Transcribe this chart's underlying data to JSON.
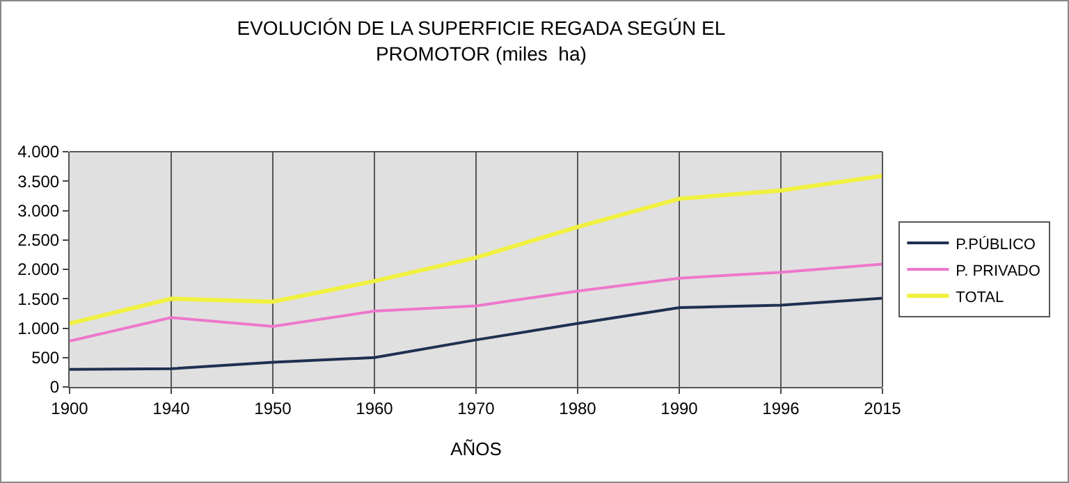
{
  "chart_data": {
    "type": "line",
    "title": "EVOLUCIÓN DE LA SUPERFICIE REGADA SEGÚN EL PROMOTOR (miles  ha)",
    "xlabel": "AÑOS",
    "categories": [
      "1900",
      "1940",
      "1950",
      "1960",
      "1970",
      "1980",
      "1990",
      "1996",
      "2015"
    ],
    "series": [
      {
        "name": "P.PÚBLICO",
        "color": "#1f3050",
        "values": [
          300,
          310,
          420,
          500,
          800,
          1080,
          1350,
          1390,
          1510
        ]
      },
      {
        "name": "P. PRIVADO",
        "color": "#ee77cc",
        "values": [
          780,
          1180,
          1030,
          1290,
          1380,
          1630,
          1850,
          1950,
          2090
        ]
      },
      {
        "name": "TOTAL",
        "color": "#f0f040",
        "values": [
          1080,
          1500,
          1450,
          1800,
          2200,
          2720,
          3200,
          3340,
          3590
        ]
      }
    ],
    "ylim": [
      0,
      4000
    ],
    "yticks": [
      {
        "value": 0,
        "label": "0"
      },
      {
        "value": 500,
        "label": "500"
      },
      {
        "value": 1000,
        "label": "1.000"
      },
      {
        "value": 1500,
        "label": "1.500"
      },
      {
        "value": 2000,
        "label": "2.000"
      },
      {
        "value": 2500,
        "label": "2.500"
      },
      {
        "value": 3000,
        "label": "3.000"
      },
      {
        "value": 3500,
        "label": "3.500"
      },
      {
        "value": 4000,
        "label": "4.000"
      }
    ],
    "grid": "x",
    "legend": "right",
    "marker": "none",
    "line_style": "solid"
  }
}
